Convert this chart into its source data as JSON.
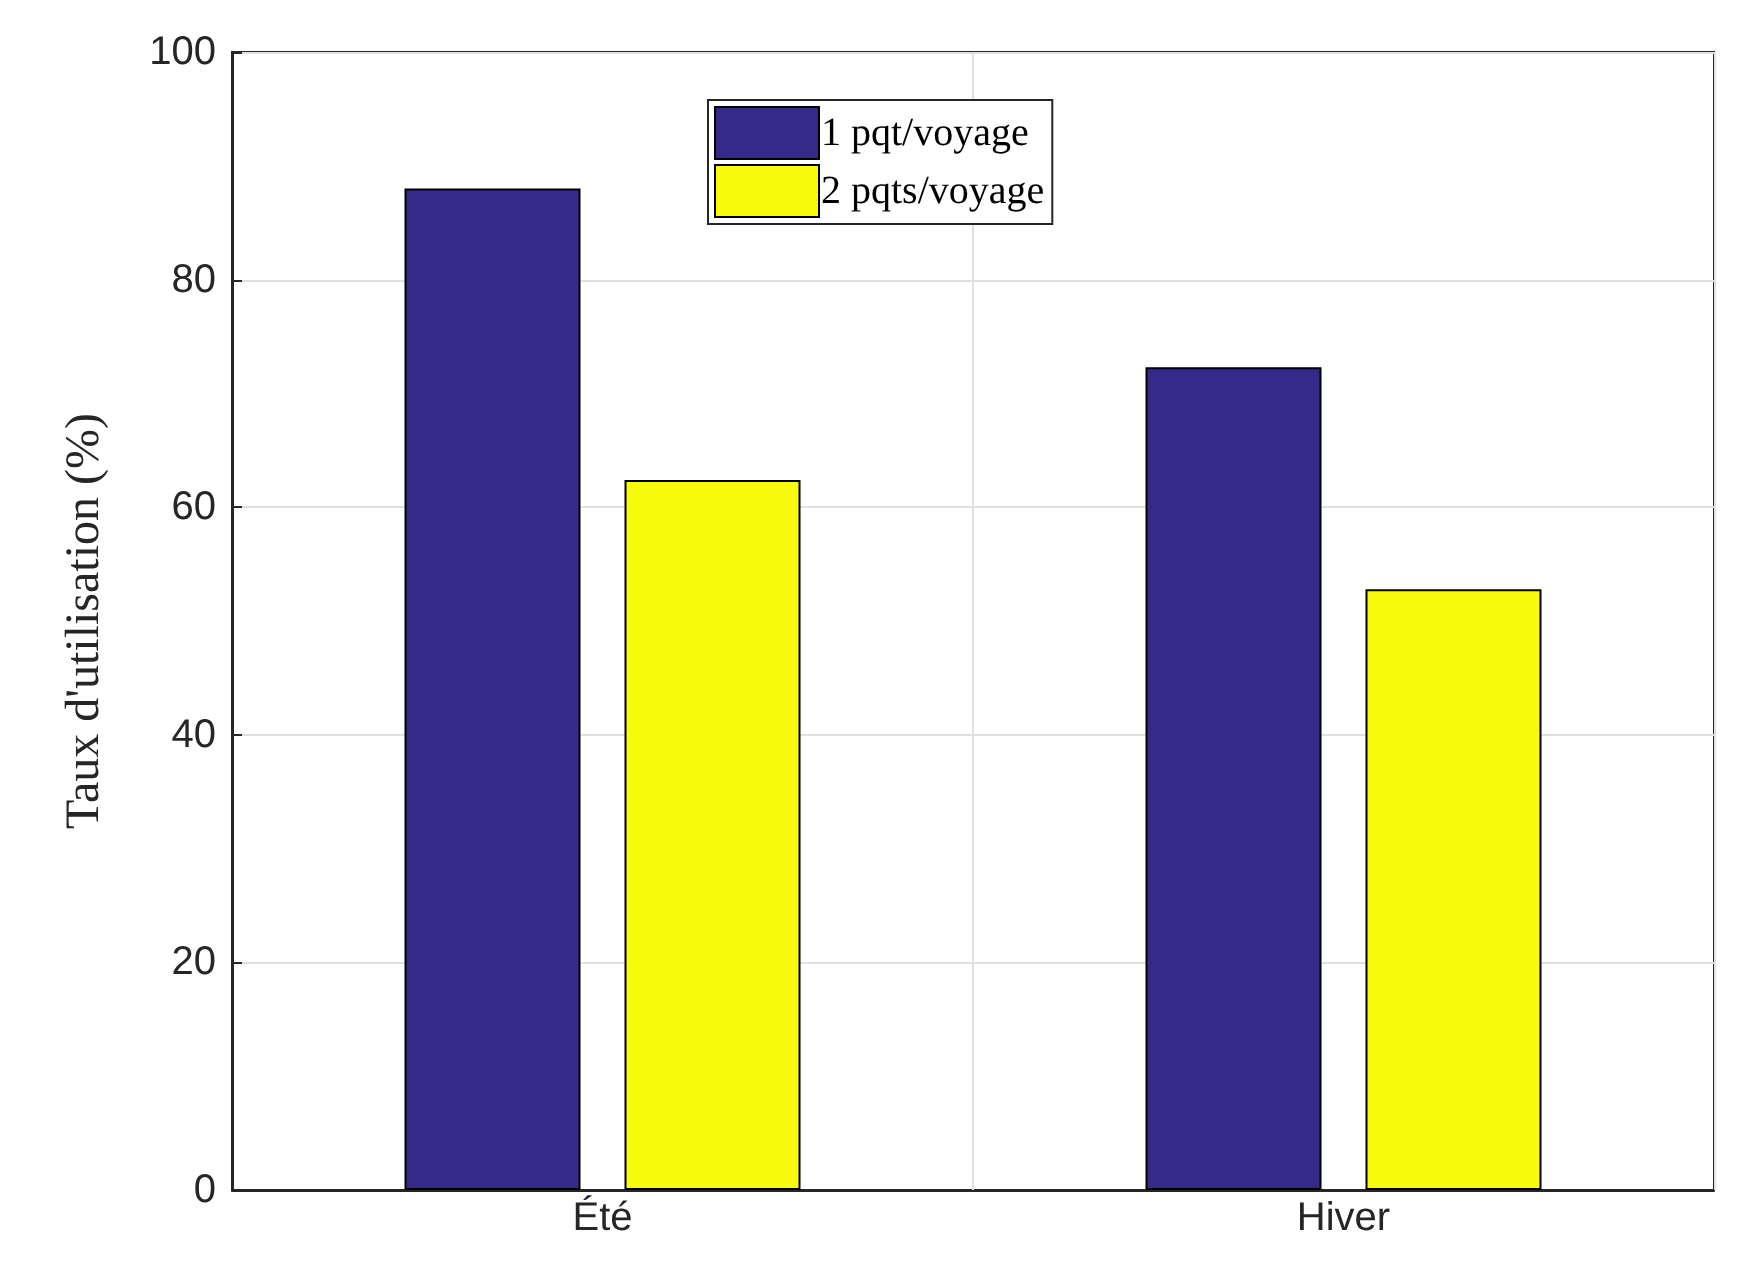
{
  "chart_data": {
    "type": "bar",
    "ylabel": "Taux d'utilisation (%)",
    "categories": [
      "Été",
      "Hiver"
    ],
    "series": [
      {
        "name": "1 pqt/voyage",
        "color": "#352a87",
        "values": [
          88.0,
          72.3
        ]
      },
      {
        "name": "2 pqts/voyage",
        "color": "#f9fb0e",
        "values": [
          62.4,
          52.8
        ]
      }
    ],
    "ylim": [
      0,
      100
    ],
    "yticks": [
      0,
      20,
      40,
      60,
      80,
      100
    ],
    "grid": true,
    "legend": "top"
  }
}
